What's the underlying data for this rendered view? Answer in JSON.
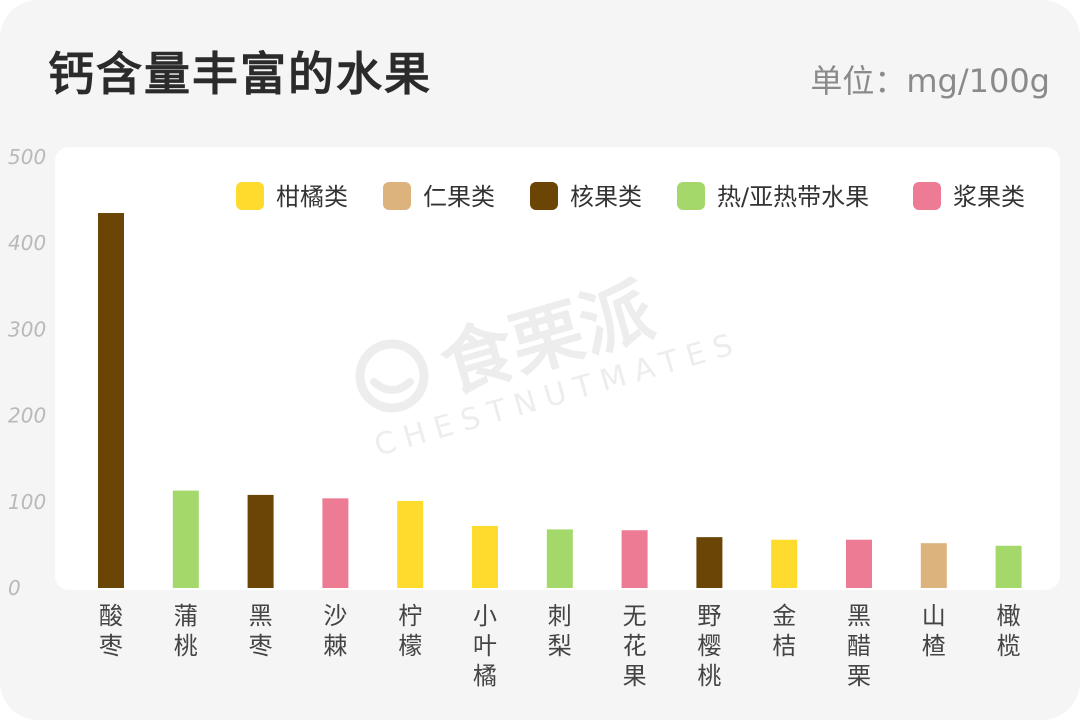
{
  "header": {
    "title": "钙含量丰富的水果",
    "unit": "单位：mg/100g"
  },
  "watermark": {
    "brand": "食栗派",
    "brand_en": "CHESTNUTMATES"
  },
  "colors": {
    "柑橘类": "#fedb2d",
    "仁果类": "#ddb37d",
    "核果类": "#6b4505",
    "热/亚热带水果": "#a5d86a",
    "浆果类": "#ec7b93"
  },
  "chart_data": {
    "type": "bar",
    "title": "钙含量丰富的水果",
    "ylabel": "单位：mg/100g",
    "xlabel": "",
    "ylim": [
      0,
      500
    ],
    "yticks": [
      0,
      100,
      200,
      300,
      400,
      500
    ],
    "grid": false,
    "legend_position": "top-right",
    "legend": [
      "柑橘类",
      "仁果类",
      "核果类",
      "热/亚热带水果",
      "浆果类"
    ],
    "categories": [
      "酸枣",
      "蒲桃",
      "黑枣",
      "沙棘",
      "柠檬",
      "小叶橘",
      "刺梨",
      "无花果",
      "野樱桃",
      "金桔",
      "黑醋栗",
      "山楂",
      "橄榄"
    ],
    "values": [
      435,
      113,
      108,
      104,
      101,
      72,
      68,
      67,
      59,
      56,
      56,
      52,
      49
    ],
    "groups": [
      "核果类",
      "热/亚热带水果",
      "核果类",
      "浆果类",
      "柑橘类",
      "柑橘类",
      "热/亚热带水果",
      "浆果类",
      "核果类",
      "柑橘类",
      "浆果类",
      "仁果类",
      "热/亚热带水果"
    ]
  }
}
